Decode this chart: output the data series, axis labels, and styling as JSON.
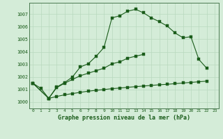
{
  "title": "Graphe pression niveau de la mer (hPa)",
  "bg_color": "#d4ecd8",
  "grid_color": "#b8d8be",
  "line_color": "#1a5c1a",
  "spine_color": "#4a7a50",
  "xlim": [
    -0.5,
    23.5
  ],
  "ylim": [
    999.5,
    1007.9
  ],
  "x_ticks": [
    0,
    1,
    2,
    3,
    4,
    5,
    6,
    7,
    8,
    9,
    10,
    11,
    12,
    13,
    14,
    15,
    16,
    17,
    18,
    19,
    20,
    21,
    22,
    23
  ],
  "y_ticks": [
    1000,
    1001,
    1002,
    1003,
    1004,
    1005,
    1006,
    1007
  ],
  "line1_x": [
    0,
    1,
    2,
    3,
    4,
    5,
    6,
    7,
    8,
    9,
    10,
    11,
    12,
    13,
    14,
    15,
    16,
    17,
    18,
    19,
    20,
    21,
    22
  ],
  "line1_y": [
    1001.5,
    1001.1,
    1000.3,
    1001.2,
    1001.55,
    1002.0,
    1002.8,
    1003.05,
    1003.65,
    1004.35,
    1006.7,
    1006.87,
    1007.23,
    1007.38,
    1007.1,
    1006.7,
    1006.4,
    1006.05,
    1005.5,
    1005.12,
    1005.2,
    1003.4,
    1002.7
  ],
  "line2_x": [
    0,
    2,
    3,
    4,
    5,
    6,
    7,
    8,
    9,
    10,
    11,
    12,
    13,
    14
  ],
  "line2_y": [
    1001.5,
    1000.3,
    1001.15,
    1001.5,
    1001.8,
    1002.1,
    1002.3,
    1002.5,
    1002.7,
    1003.05,
    1003.2,
    1003.5,
    1003.65,
    1003.8
  ],
  "line3_x": [
    0,
    2,
    3,
    4,
    5,
    6,
    7,
    8,
    9,
    10,
    11,
    12,
    13,
    14,
    15,
    16,
    17,
    18,
    19,
    20,
    21,
    22
  ],
  "line3_y": [
    1001.5,
    1000.3,
    1000.45,
    1000.58,
    1000.68,
    1000.78,
    1000.87,
    1000.94,
    1001.0,
    1001.07,
    1001.12,
    1001.18,
    1001.23,
    1001.28,
    1001.33,
    1001.38,
    1001.42,
    1001.47,
    1001.52,
    1001.57,
    1001.62,
    1001.67
  ]
}
